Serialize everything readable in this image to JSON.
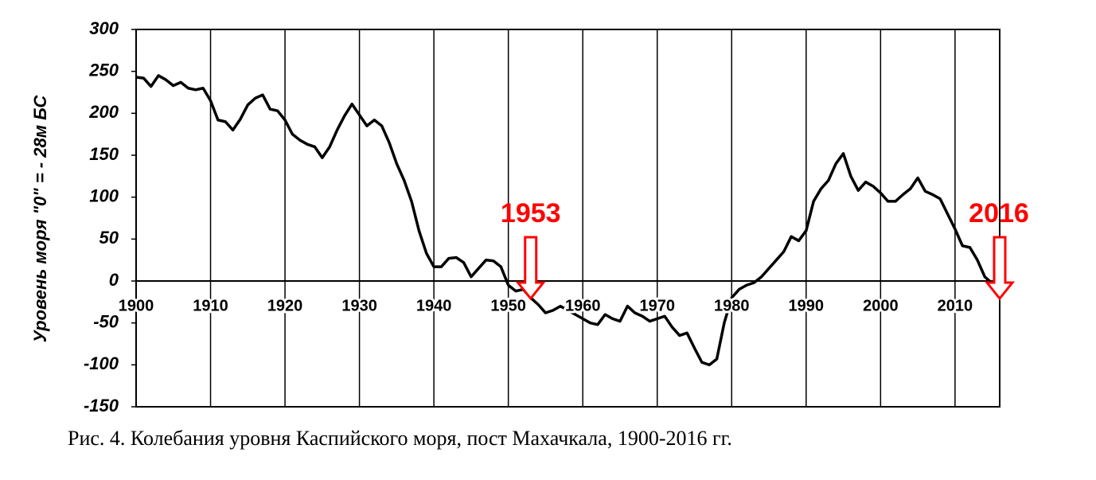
{
  "chart_data": {
    "type": "line",
    "y_label": "Уровень моря \"0\" = - 28м БС",
    "caption": "Рис. 4. Колебания уровня Каспийского моря, пост Махачкала, 1900-2016 гг.",
    "x": [
      1900,
      1901,
      1902,
      1903,
      1904,
      1905,
      1906,
      1907,
      1908,
      1909,
      1910,
      1911,
      1912,
      1913,
      1914,
      1915,
      1916,
      1917,
      1918,
      1919,
      1920,
      1921,
      1922,
      1923,
      1924,
      1925,
      1926,
      1927,
      1928,
      1929,
      1930,
      1931,
      1932,
      1933,
      1934,
      1935,
      1936,
      1937,
      1938,
      1939,
      1940,
      1941,
      1942,
      1943,
      1944,
      1945,
      1946,
      1947,
      1948,
      1949,
      1950,
      1951,
      1952,
      1953,
      1954,
      1955,
      1956,
      1957,
      1958,
      1959,
      1960,
      1961,
      1962,
      1963,
      1964,
      1965,
      1966,
      1967,
      1968,
      1969,
      1970,
      1971,
      1972,
      1973,
      1974,
      1975,
      1976,
      1977,
      1978,
      1979,
      1980,
      1981,
      1982,
      1983,
      1984,
      1985,
      1986,
      1987,
      1988,
      1989,
      1990,
      1991,
      1992,
      1993,
      1994,
      1995,
      1996,
      1997,
      1998,
      1999,
      2000,
      2001,
      2002,
      2003,
      2004,
      2005,
      2006,
      2007,
      2008,
      2009,
      2010,
      2011,
      2012,
      2013,
      2014,
      2015
    ],
    "values": [
      243,
      242,
      232,
      245,
      240,
      233,
      237,
      230,
      228,
      230,
      215,
      192,
      190,
      180,
      193,
      210,
      218,
      222,
      205,
      203,
      192,
      175,
      168,
      163,
      160,
      147,
      160,
      180,
      197,
      211,
      198,
      185,
      192,
      185,
      165,
      140,
      120,
      95,
      60,
      33,
      17,
      17,
      27,
      28,
      22,
      5,
      15,
      25,
      24,
      17,
      -5,
      -12,
      -10,
      -20,
      -28,
      -38,
      -35,
      -30,
      -35,
      -40,
      -45,
      -50,
      -52,
      -40,
      -45,
      -48,
      -30,
      -38,
      -42,
      -48,
      -45,
      -42,
      -55,
      -65,
      -62,
      -80,
      -97,
      -100,
      -93,
      -50,
      -20,
      -10,
      -5,
      -2,
      5,
      15,
      25,
      35,
      53,
      48,
      60,
      95,
      110,
      120,
      140,
      152,
      125,
      108,
      118,
      113,
      105,
      95,
      95,
      103,
      110,
      123,
      107,
      103,
      98,
      80,
      62,
      42,
      40,
      25,
      5,
      -3
    ],
    "color": "#000000",
    "xlim": [
      1900,
      2016
    ],
    "ylim": [
      -150,
      300
    ],
    "xticks": [
      1900,
      1910,
      1920,
      1930,
      1940,
      1950,
      1960,
      1970,
      1980,
      1990,
      2000,
      2010
    ],
    "yticks": [
      -150,
      -100,
      -50,
      0,
      50,
      100,
      150,
      200,
      250,
      300
    ],
    "grid": true,
    "annotations": [
      {
        "text": "1953",
        "x": 1953
      },
      {
        "text": "2016",
        "x": 2016
      }
    ],
    "annotation_color": "#ff0000"
  }
}
